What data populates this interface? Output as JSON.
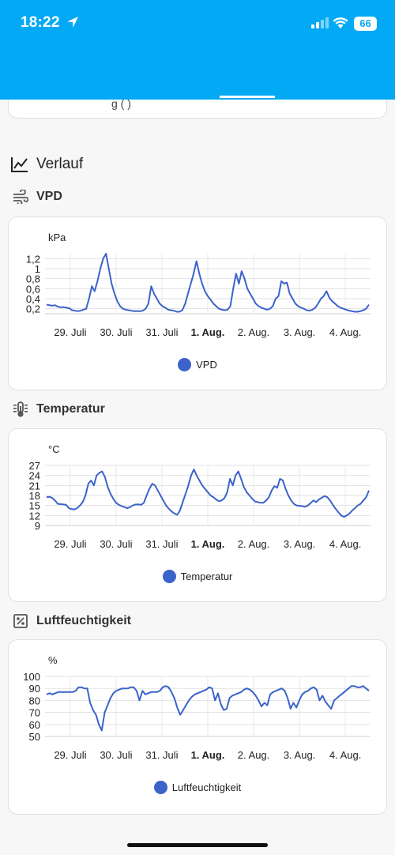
{
  "status": {
    "time": "18:22",
    "battery": "66"
  },
  "appbar": {
    "items": [
      {
        "name": "menu-button"
      },
      {
        "name": "home-tab"
      },
      {
        "name": "energy-tab"
      },
      {
        "name": "clipboard-tab"
      },
      {
        "name": "plant-tab"
      },
      {
        "name": "cannabis-tab"
      },
      {
        "name": "next-tab-button"
      },
      {
        "name": "more-menu-button"
      }
    ]
  },
  "partial_card_text": "g    (             )",
  "section": {
    "title": "Verlauf"
  },
  "charts": [
    {
      "heading": "VPD",
      "unit": "kPa",
      "legend": "VPD",
      "color": "#3b63c9",
      "chart_data": {
        "type": "line",
        "x_tick_labels": [
          "29. Juli",
          "30. Juli",
          "31. Juli",
          "1. Aug.",
          "2. Aug.",
          "3. Aug.",
          "4. Aug."
        ],
        "y_tick_labels": [
          "0,2",
          "0,4",
          "0,6",
          "0,8",
          "1",
          "1,2"
        ],
        "ylim": [
          0.1,
          1.3
        ],
        "series": [
          {
            "name": "VPD",
            "values": [
              0.28,
              0.27,
              0.26,
              0.27,
              0.24,
              0.23,
              0.23,
              0.22,
              0.21,
              0.17,
              0.16,
              0.15,
              0.16,
              0.18,
              0.2,
              0.4,
              0.65,
              0.55,
              0.75,
              1.0,
              1.2,
              1.3,
              1.0,
              0.7,
              0.5,
              0.35,
              0.25,
              0.2,
              0.18,
              0.17,
              0.16,
              0.15,
              0.15,
              0.15,
              0.16,
              0.2,
              0.3,
              0.65,
              0.5,
              0.4,
              0.3,
              0.25,
              0.22,
              0.18,
              0.17,
              0.16,
              0.14,
              0.14,
              0.17,
              0.3,
              0.5,
              0.7,
              0.9,
              1.15,
              0.9,
              0.7,
              0.55,
              0.45,
              0.38,
              0.3,
              0.25,
              0.2,
              0.18,
              0.17,
              0.18,
              0.25,
              0.6,
              0.9,
              0.7,
              0.95,
              0.8,
              0.6,
              0.5,
              0.4,
              0.3,
              0.25,
              0.22,
              0.2,
              0.18,
              0.2,
              0.25,
              0.4,
              0.45,
              0.75,
              0.7,
              0.72,
              0.5,
              0.4,
              0.3,
              0.25,
              0.22,
              0.2,
              0.17,
              0.16,
              0.18,
              0.22,
              0.3,
              0.4,
              0.45,
              0.55,
              0.42,
              0.35,
              0.3,
              0.25,
              0.22,
              0.2,
              0.18,
              0.16,
              0.15,
              0.14,
              0.14,
              0.15,
              0.17,
              0.2,
              0.28
            ]
          }
        ],
        "highlight_tick": "1. Aug."
      }
    },
    {
      "heading": "Temperatur",
      "unit": "°C",
      "legend": "Temperatur",
      "color": "#3b63c9",
      "chart_data": {
        "type": "line",
        "x_tick_labels": [
          "29. Juli",
          "30. Juli",
          "31. Juli",
          "1. Aug.",
          "2. Aug.",
          "3. Aug.",
          "4. Aug."
        ],
        "y_tick_labels": [
          "9",
          "12",
          "15",
          "18",
          "21",
          "24",
          "27"
        ],
        "ylim": [
          9,
          27
        ],
        "series": [
          {
            "name": "Temperatur",
            "values": [
              17.5,
              17.6,
              17.3,
              16.5,
              15.5,
              15.4,
              15.3,
              15.2,
              14.2,
              13.9,
              13.8,
              14.2,
              15,
              16,
              18,
              21.5,
              22.5,
              21,
              24,
              24.8,
              25.2,
              23.5,
              20.5,
              18.5,
              17,
              15.8,
              15.2,
              14.8,
              14.5,
              14.2,
              14.5,
              15,
              15.3,
              15.3,
              15.2,
              15.8,
              18,
              20,
              21.5,
              21,
              19.5,
              18,
              16.5,
              15,
              14,
              13.2,
              12.6,
              12.2,
              13.5,
              16,
              18.5,
              21,
              24,
              25.8,
              24,
              22.5,
              21,
              20,
              19,
              18,
              17.5,
              16.8,
              16.3,
              16.5,
              17.2,
              19,
              23,
              21,
              24,
              25.2,
              23,
              20.5,
              19,
              18,
              17,
              16.2,
              16,
              15.8,
              15.8,
              16.5,
              17.5,
              19.5,
              20.8,
              20.3,
              23,
              22.5,
              20,
              18,
              16.5,
              15.5,
              15,
              14.9,
              14.8,
              14.6,
              15,
              15.7,
              16.5,
              16,
              16.8,
              17.3,
              17.8,
              17.5,
              16.5,
              15.2,
              14,
              13,
              12,
              11.6,
              12,
              12.6,
              13.5,
              14.2,
              15,
              15.5,
              16.5,
              17.5,
              19.5
            ]
          }
        ],
        "highlight_tick": "1. Aug."
      }
    },
    {
      "heading": "Luftfeuchtigkeit",
      "unit": "%",
      "legend": "Luftfeuchtigkeit",
      "color": "#3b63c9",
      "chart_data": {
        "type": "line",
        "x_tick_labels": [
          "29. Juli",
          "30. Juli",
          "31. Juli",
          "1. Aug.",
          "2. Aug.",
          "3. Aug.",
          "4. Aug."
        ],
        "y_tick_labels": [
          "50",
          "60",
          "70",
          "80",
          "90",
          "100"
        ],
        "ylim": [
          50,
          100
        ],
        "series": [
          {
            "name": "Luftfeuchtigkeit",
            "values": [
              85,
              86,
              85,
              86,
              87,
              87,
              87,
              87,
              87,
              87,
              88,
              91,
              91,
              90,
              90,
              78,
              72,
              68,
              60,
              55,
              70,
              76,
              82,
              86,
              88,
              89,
              90,
              90,
              90,
              91,
              91,
              88,
              80,
              88,
              85,
              86,
              87,
              87,
              87,
              88,
              91,
              92,
              91,
              87,
              82,
              74,
              68,
              72,
              76,
              80,
              83,
              85,
              86,
              87,
              88,
              89,
              91,
              90,
              80,
              86,
              77,
              72,
              73,
              82,
              84,
              85,
              86,
              87,
              89,
              90,
              89,
              87,
              84,
              80,
              75,
              78,
              76,
              85,
              87,
              88,
              89,
              90,
              88,
              82,
              73,
              78,
              74,
              80,
              85,
              87,
              88,
              90,
              91,
              89,
              80,
              84,
              79,
              76,
              73,
              80,
              82,
              84,
              86,
              88,
              90,
              92,
              92,
              91,
              91,
              92,
              90,
              88
            ]
          }
        ],
        "highlight_tick": "1. Aug."
      }
    }
  ]
}
